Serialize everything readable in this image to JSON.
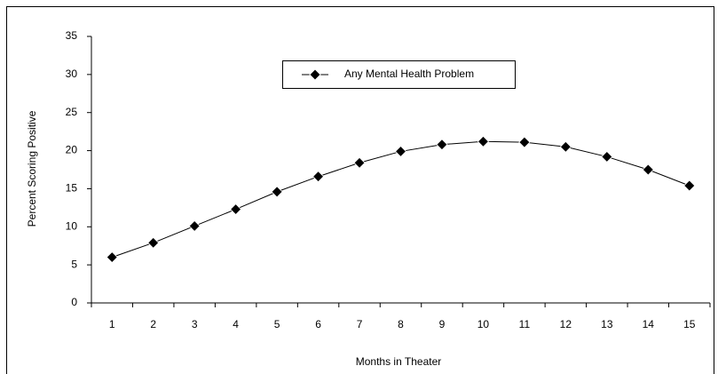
{
  "chart_data": {
    "type": "line",
    "xlabel": "Months in Theater",
    "ylabel": "Percent Scoring Positive",
    "categories": [
      "1",
      "2",
      "3",
      "4",
      "5",
      "6",
      "7",
      "8",
      "9",
      "10",
      "11",
      "12",
      "13",
      "14",
      "15"
    ],
    "series": [
      {
        "name": "Any Mental Health Problem",
        "color": "#000000",
        "values": [
          6.0,
          7.9,
          10.1,
          12.3,
          14.6,
          16.6,
          18.4,
          19.9,
          20.8,
          21.2,
          21.1,
          20.5,
          19.2,
          17.5,
          15.4
        ]
      }
    ],
    "ylim": [
      0,
      35
    ],
    "yticks": [
      0,
      5,
      10,
      15,
      20,
      25,
      30,
      35
    ],
    "grid": false,
    "legend": "top"
  }
}
